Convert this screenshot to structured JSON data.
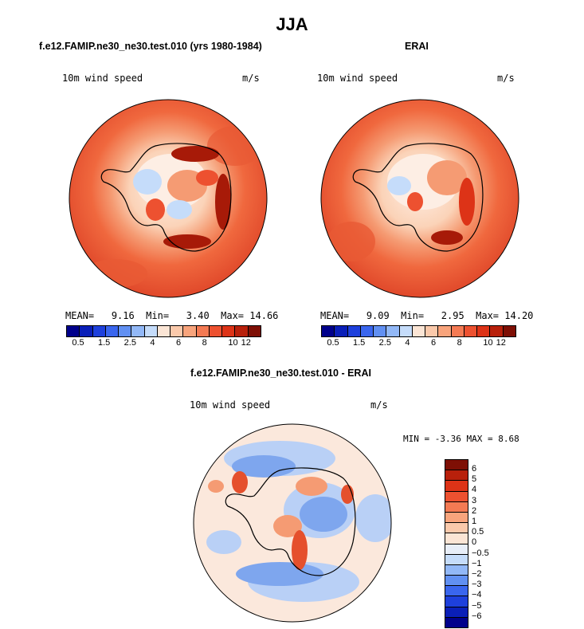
{
  "figure": {
    "season_title": "JJA",
    "panels": [
      {
        "title": "f.e12.FAMIP.ne30_ne30.test.010 (yrs 1980-1984)",
        "variable": "10m wind speed",
        "units": "m/s",
        "stats": {
          "mean_label": "MEAN=",
          "mean": "9.16",
          "min_label": "Min=",
          "min": "3.40",
          "max_label": "Max=",
          "max": "14.66"
        }
      },
      {
        "title": "ERAI",
        "variable": "10m wind speed",
        "units": "m/s",
        "stats": {
          "mean_label": "MEAN=",
          "mean": "9.09",
          "min_label": "Min=",
          "min": "2.95",
          "max_label": "Max=",
          "max": "14.20"
        }
      },
      {
        "title": "f.e12.FAMIP.ne30_ne30.test.010 - ERAI",
        "variable": "10m wind speed",
        "units": "m/s",
        "minmax_text": "MIN =   -3.36 MAX =    8.68"
      }
    ],
    "colorbar_abs": {
      "colors": [
        "#00008b",
        "#0a1fb8",
        "#1e40dc",
        "#3a66ee",
        "#6190f2",
        "#92b8f7",
        "#c5dcfa",
        "#fbe5d5",
        "#fac9ab",
        "#f8a47c",
        "#f47a53",
        "#ed5130",
        "#dd3317",
        "#b8200b",
        "#7e0f05"
      ],
      "labels": [
        "0.5",
        "1.5",
        "2.5",
        "4",
        "6",
        "8",
        "10",
        "12"
      ]
    },
    "colorbar_diff": {
      "colors": [
        "#7e0f05",
        "#b8200b",
        "#dd3317",
        "#ed5130",
        "#f47a53",
        "#f8a47c",
        "#fac9ab",
        "#fbe5d5",
        "#e8eef8",
        "#c5dcfa",
        "#92b8f7",
        "#6190f2",
        "#3a66ee",
        "#1e40dc",
        "#0a1fb8",
        "#00008b"
      ],
      "labels": [
        "6",
        "5",
        "4",
        "3",
        "2",
        "1",
        "0.5",
        "0",
        "−0.5",
        "−1",
        "−2",
        "−3",
        "−4",
        "−5",
        "−6"
      ]
    },
    "map_colors": {
      "outer": "#e0482a",
      "ring": "#f0683e",
      "mid": "#f59b73",
      "light": "#fbd3b8",
      "pale": "#fdeee4",
      "ice_blue": "#c5dcfa",
      "dark": "#a71a08",
      "diff_base": "#fbe8dc",
      "diff_blue": "#7ea6ee",
      "diff_lightblue": "#b9d0f6",
      "diff_red": "#e5502d",
      "coast": "#000000"
    }
  }
}
